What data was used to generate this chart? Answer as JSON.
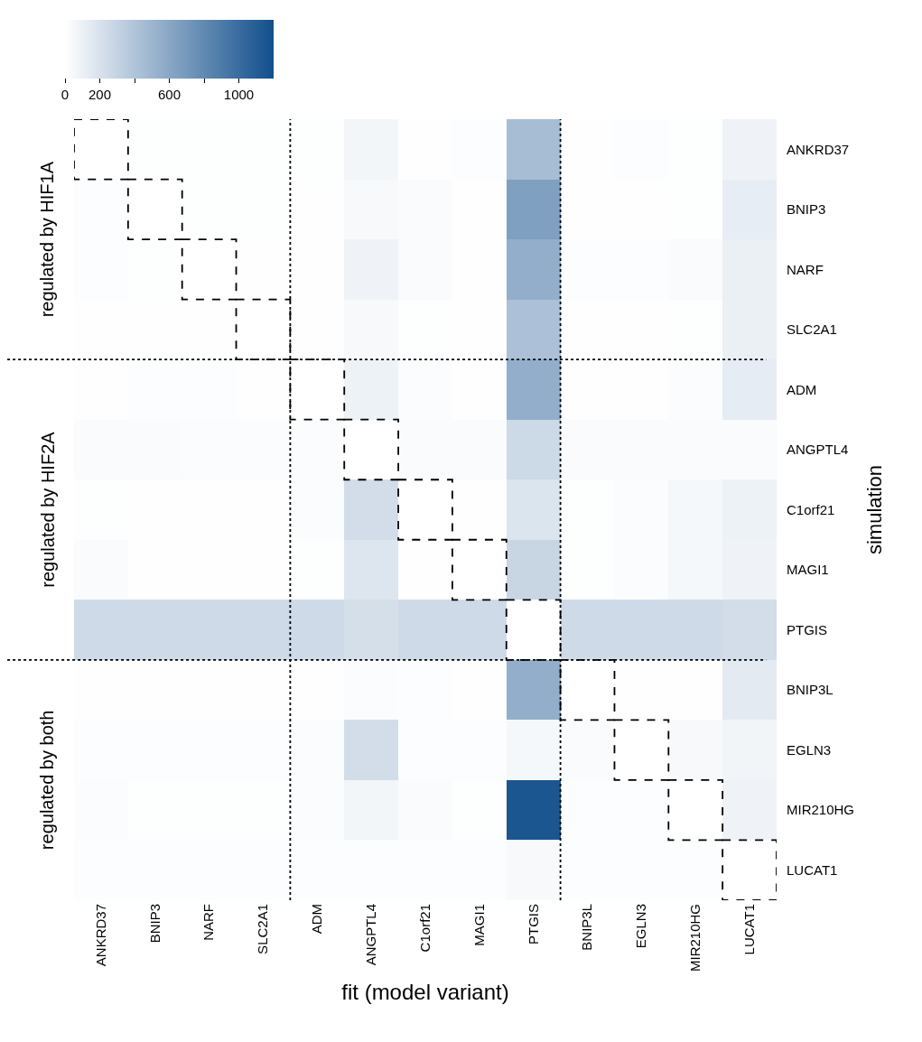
{
  "chart_data": {
    "type": "heatmap",
    "xlabel": "fit (model variant)",
    "ylabel": "simulation",
    "categories": [
      "ANKRD37",
      "BNIP3",
      "NARF",
      "SLC2A1",
      "ADM",
      "ANGPTL4",
      "C1orf21",
      "MAGI1",
      "PTGIS",
      "BNIP3L",
      "EGLN3",
      "MIR210HG",
      "LUCAT1"
    ],
    "y_categories": [
      "ANKRD37",
      "BNIP3",
      "NARF",
      "SLC2A1",
      "ADM",
      "ANGPTL4",
      "C1orf21",
      "MAGI1",
      "PTGIS",
      "BNIP3L",
      "EGLN3",
      "MIR210HG",
      "LUCAT1"
    ],
    "cells": [
      [
        0,
        10,
        10,
        10,
        10,
        60,
        5,
        15,
        450,
        5,
        15,
        10,
        80
      ],
      [
        15,
        0,
        10,
        10,
        5,
        40,
        30,
        5,
        650,
        5,
        5,
        10,
        120
      ],
      [
        15,
        10,
        0,
        5,
        5,
        80,
        30,
        5,
        550,
        15,
        15,
        30,
        100
      ],
      [
        5,
        5,
        5,
        0,
        5,
        40,
        10,
        5,
        420,
        5,
        5,
        10,
        100
      ],
      [
        5,
        15,
        15,
        5,
        0,
        90,
        20,
        5,
        550,
        5,
        5,
        20,
        130
      ],
      [
        30,
        30,
        20,
        20,
        20,
        0,
        30,
        30,
        260,
        30,
        30,
        30,
        30
      ],
      [
        10,
        5,
        5,
        5,
        20,
        230,
        0,
        5,
        180,
        10,
        20,
        50,
        90
      ],
      [
        25,
        5,
        5,
        5,
        10,
        170,
        5,
        0,
        280,
        10,
        20,
        50,
        80
      ],
      [
        250,
        250,
        250,
        250,
        250,
        220,
        250,
        250,
        0,
        250,
        250,
        250,
        230
      ],
      [
        5,
        5,
        5,
        5,
        5,
        20,
        15,
        5,
        550,
        0,
        5,
        5,
        140
      ],
      [
        15,
        15,
        15,
        15,
        20,
        230,
        15,
        15,
        50,
        30,
        0,
        40,
        70
      ],
      [
        20,
        10,
        10,
        10,
        20,
        60,
        25,
        10,
        1150,
        15,
        15,
        0,
        80
      ],
      [
        15,
        15,
        15,
        15,
        15,
        15,
        15,
        15,
        40,
        15,
        15,
        15,
        0
      ]
    ],
    "clim": [
      0,
      1200
    ],
    "cticks": [
      0,
      200,
      {
        "value": 400,
        "label": null
      },
      600,
      {
        "value": 800,
        "label": null
      },
      1000
    ],
    "annotations": [
      "regulated by HIF1A",
      "regulated by HIF2A",
      "regulated by both"
    ]
  }
}
